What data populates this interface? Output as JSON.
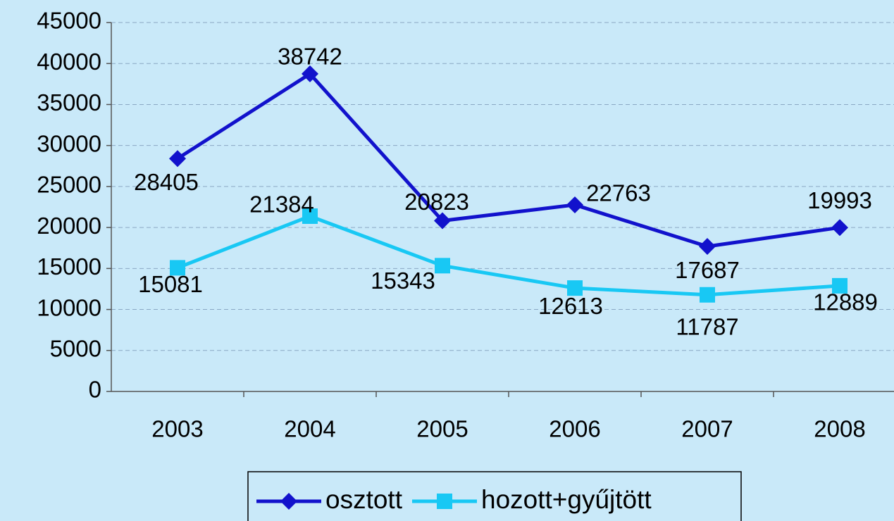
{
  "chart_data": {
    "type": "line",
    "categories": [
      "2003",
      "2004",
      "2005",
      "2006",
      "2007",
      "2008"
    ],
    "series": [
      {
        "name": "osztott",
        "color": "#1212cc",
        "marker": "diamond",
        "values": [
          28405,
          38742,
          20823,
          22763,
          17687,
          19993
        ]
      },
      {
        "name": "hozott+gyűjtött",
        "color": "#18c8f4",
        "marker": "square",
        "values": [
          15081,
          21384,
          15343,
          12613,
          11787,
          12889
        ]
      }
    ],
    "ylim": [
      0,
      45000
    ],
    "yticks": [
      0,
      5000,
      10000,
      15000,
      20000,
      25000,
      30000,
      35000,
      40000,
      45000
    ],
    "grid": true,
    "legend": "bottom"
  }
}
